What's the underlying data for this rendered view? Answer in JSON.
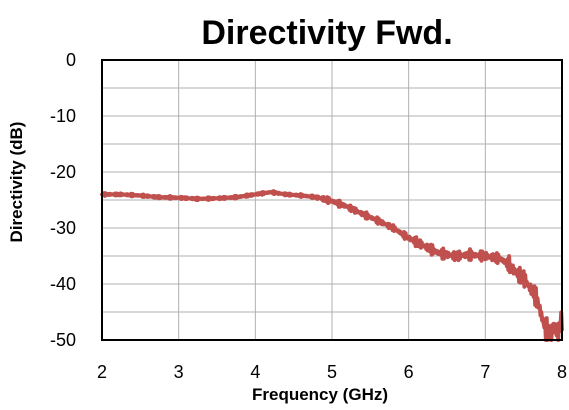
{
  "chart_data": {
    "type": "line",
    "title": "Directivity Fwd.",
    "xlabel": "Frequency (GHz)",
    "ylabel": "Directivity (dB)",
    "xlim": [
      2,
      8
    ],
    "ylim": [
      -50,
      0
    ],
    "xticks": [
      2,
      3,
      4,
      5,
      6,
      7,
      8
    ],
    "xtick_labels": [
      "2",
      "3",
      "4",
      "5",
      "6",
      "7",
      "8"
    ],
    "yticks": [
      0,
      -10,
      -20,
      -30,
      -40,
      -50
    ],
    "ytick_labels": [
      "0",
      "-10",
      "-20",
      "-30",
      "-40",
      "-50"
    ],
    "x_minor_grid_step": 1,
    "y_minor_grid_step": 5,
    "grid": true,
    "legend": "none",
    "series_color": "#c0504d",
    "series": [
      {
        "x": [
          2.0,
          2.25,
          2.5,
          2.75,
          3.0,
          3.25,
          3.5,
          3.75,
          3.9,
          4.0,
          4.1,
          4.2,
          4.4,
          4.6,
          4.8,
          5.0,
          5.2,
          5.4,
          5.6,
          5.8,
          6.0,
          6.2,
          6.4,
          6.6,
          6.8,
          7.0,
          7.2,
          7.3,
          7.4,
          7.5,
          7.6,
          7.65,
          7.7,
          7.75,
          7.8,
          7.85,
          7.9,
          7.95,
          8.0
        ],
        "y": [
          -24.0,
          -24.0,
          -24.2,
          -24.5,
          -24.6,
          -24.8,
          -24.7,
          -24.5,
          -24.2,
          -24.0,
          -23.8,
          -23.6,
          -24.0,
          -24.2,
          -24.5,
          -25.2,
          -26.2,
          -27.5,
          -28.7,
          -30.0,
          -31.8,
          -33.2,
          -34.5,
          -35.0,
          -34.8,
          -35.0,
          -35.5,
          -36.5,
          -38.0,
          -39.0,
          -41.0,
          -42.0,
          -44.0,
          -46.5,
          -48.5,
          -49.5,
          -47.0,
          -49.0,
          -46.0
        ]
      }
    ]
  }
}
